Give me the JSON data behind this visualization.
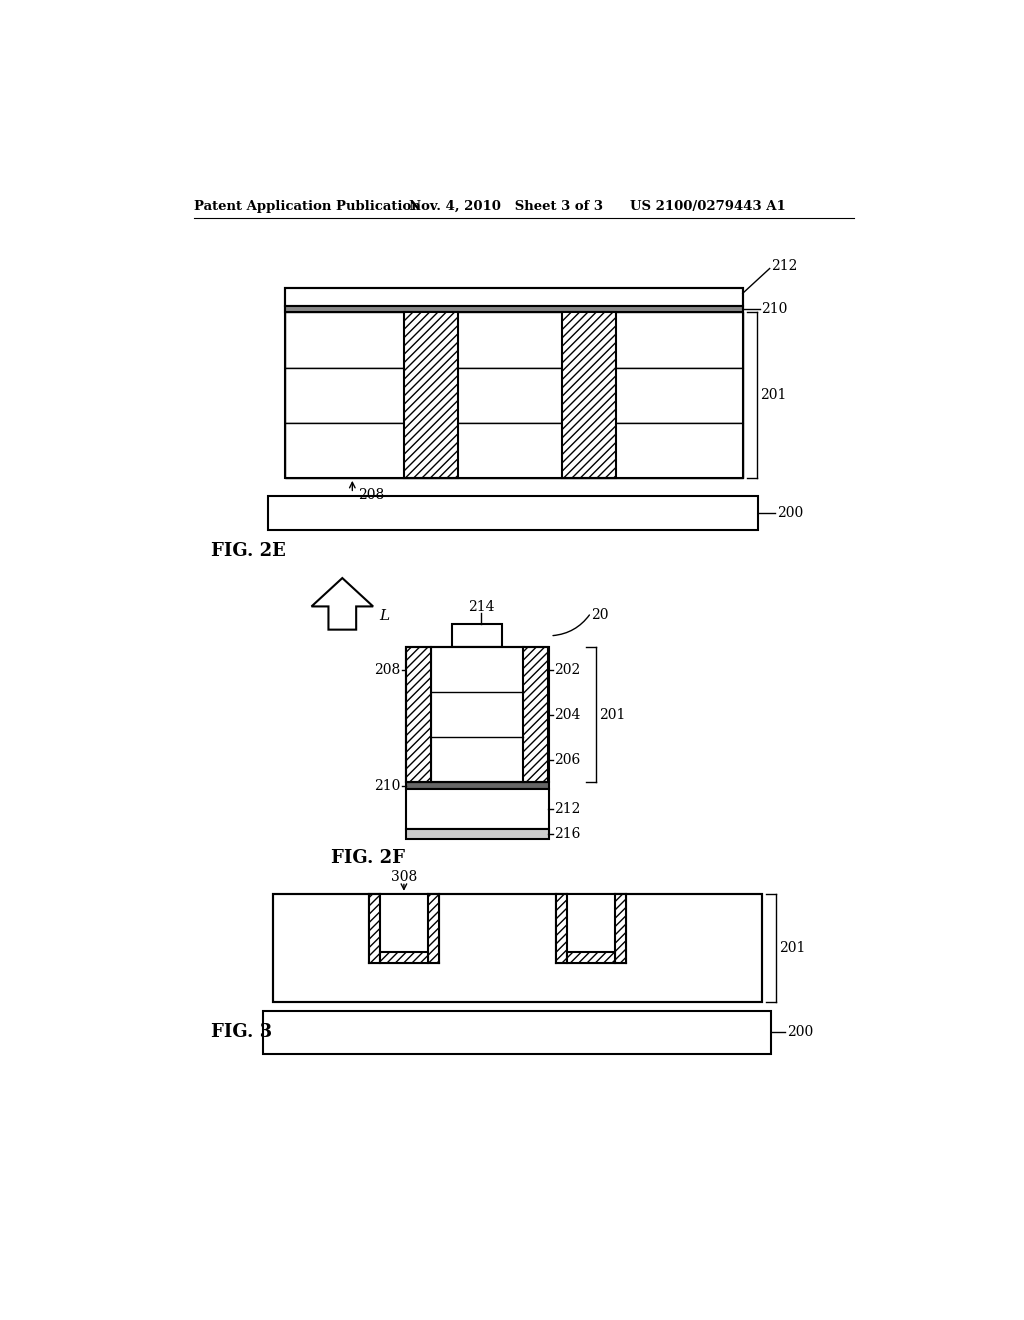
{
  "bg_color": "#ffffff",
  "header_left": "Patent Application Publication",
  "header_mid": "Nov. 4, 2010   Sheet 3 of 3",
  "header_right": "US 2100/0279443 A1",
  "fig2e_label": "FIG. 2E",
  "fig2f_label": "FIG. 2F",
  "fig3_label": "FIG. 3"
}
